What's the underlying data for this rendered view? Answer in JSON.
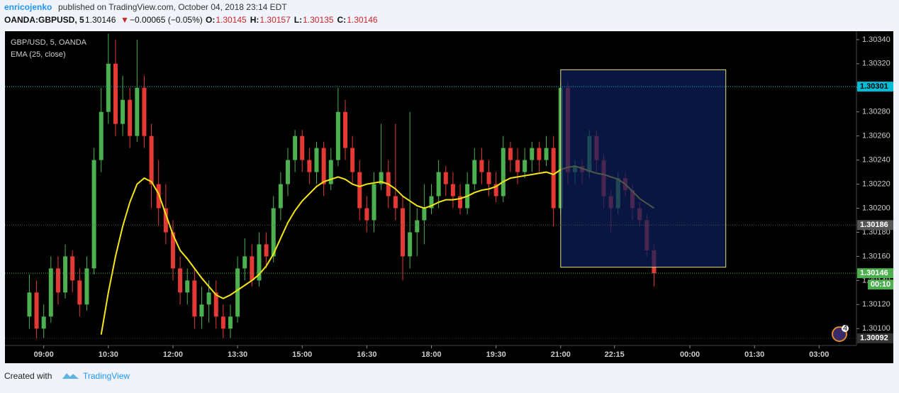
{
  "header": {
    "author": "enricojenko",
    "published": "published on TradingView.com, October 04, 2018 23:14 EDT",
    "symbol": "OANDA:GBPUSD, 5",
    "last": "1.30146",
    "arrow": "▼",
    "change": "−0.00065 (−0.05%)",
    "ohlc": [
      {
        "label": "O:",
        "value": "1.30145"
      },
      {
        "label": "H:",
        "value": "1.30157"
      },
      {
        "label": "L:",
        "value": "1.30135"
      },
      {
        "label": "C:",
        "value": "1.30146"
      }
    ]
  },
  "footer": {
    "created": "Created with",
    "brand": "TradingView"
  },
  "badge": "4",
  "chart_data": {
    "type": "candlestick",
    "x": [
      "08:40",
      "08:50",
      "09:00",
      "09:10",
      "09:20",
      "09:30",
      "09:40",
      "09:50",
      "10:00",
      "10:10",
      "10:20",
      "10:30",
      "10:40",
      "10:50",
      "11:00",
      "11:10",
      "11:20",
      "11:30",
      "11:40",
      "11:50",
      "12:00",
      "12:10",
      "12:20",
      "12:30",
      "12:40",
      "12:50",
      "13:00",
      "13:10",
      "13:20",
      "13:30",
      "13:40",
      "13:50",
      "14:00",
      "14:10",
      "14:20",
      "14:30",
      "14:40",
      "14:50",
      "15:00",
      "15:10",
      "15:20",
      "15:30",
      "15:40",
      "15:50",
      "16:00",
      "16:10",
      "16:20",
      "16:30",
      "16:40",
      "16:50",
      "17:00",
      "17:10",
      "17:20",
      "17:30",
      "17:40",
      "17:50",
      "18:00",
      "18:10",
      "18:20",
      "18:30",
      "18:40",
      "18:50",
      "19:00",
      "19:10",
      "19:20",
      "19:30",
      "19:40",
      "19:50",
      "20:00",
      "20:10",
      "20:20",
      "20:30",
      "20:40",
      "20:50",
      "21:00",
      "21:10",
      "21:20",
      "21:30",
      "21:40",
      "21:50",
      "22:00",
      "22:10",
      "22:20",
      "22:30",
      "22:40",
      "22:50",
      "23:00",
      "23:10"
    ],
    "series": [
      {
        "name": "GBP/USD, 5, OANDA",
        "up_color": "#4caf50",
        "down_color": "#e53935",
        "open": [
          1.3011,
          1.3013,
          1.301,
          1.3011,
          1.3015,
          1.3013,
          1.3016,
          1.3014,
          1.3012,
          1.3015,
          1.3024,
          1.3028,
          1.3032,
          1.3027,
          1.3029,
          1.3026,
          1.303,
          1.3026,
          1.3022,
          1.302,
          1.3018,
          1.3015,
          1.3013,
          1.3014,
          1.3011,
          1.3012,
          1.3013,
          1.3011,
          1.301,
          1.3011,
          1.3015,
          1.3016,
          1.3014,
          1.3017,
          1.3016,
          1.302,
          1.3022,
          1.3024,
          1.3026,
          1.3024,
          1.3023,
          1.3025,
          1.3022,
          1.3024,
          1.3028,
          1.3025,
          1.3023,
          1.302,
          1.3019,
          1.3022,
          1.3023,
          1.3021,
          1.302,
          1.3016,
          1.3018,
          1.3019,
          1.302,
          1.3021,
          1.3023,
          1.3022,
          1.3021,
          1.302,
          1.3022,
          1.3024,
          1.3023,
          1.3022,
          1.3021,
          1.3025,
          1.3024,
          1.3023,
          1.3024,
          1.3025,
          1.3024,
          1.3025,
          1.302,
          1.303,
          1.3023,
          1.30235,
          1.3023,
          1.3026,
          1.3024,
          1.3021,
          1.302,
          1.30225,
          1.30215,
          1.302,
          1.3019,
          1.30165
        ],
        "high": [
          1.30145,
          1.3014,
          1.3012,
          1.3016,
          1.3016,
          1.3017,
          1.30165,
          1.3015,
          1.3016,
          1.3025,
          1.303,
          1.30345,
          1.3034,
          1.3031,
          1.303,
          1.3034,
          1.3031,
          1.3027,
          1.3024,
          1.3022,
          1.3019,
          1.3016,
          1.3015,
          1.3015,
          1.30135,
          1.3014,
          1.3014,
          1.3012,
          1.3012,
          1.3016,
          1.30175,
          1.3017,
          1.3018,
          1.3018,
          1.3021,
          1.3023,
          1.3025,
          1.30265,
          1.30265,
          1.3025,
          1.30255,
          1.30255,
          1.3025,
          1.303,
          1.3029,
          1.3026,
          1.3024,
          1.3021,
          1.3023,
          1.3027,
          1.3024,
          1.3027,
          1.3021,
          1.3028,
          1.302,
          1.3022,
          1.3022,
          1.3024,
          1.30235,
          1.3023,
          1.3022,
          1.3023,
          1.3025,
          1.3025,
          1.3024,
          1.3023,
          1.3026,
          1.30255,
          1.3025,
          1.3025,
          1.30255,
          1.30255,
          1.3026,
          1.3026,
          1.30305,
          1.30305,
          1.3024,
          1.3024,
          1.30265,
          1.30265,
          1.30245,
          1.30215,
          1.3023,
          1.3023,
          1.3022,
          1.30205,
          1.30195,
          1.3017
        ],
        "low": [
          1.301,
          1.30092,
          1.30092,
          1.30105,
          1.3012,
          1.30125,
          1.3013,
          1.3011,
          1.30115,
          1.30145,
          1.3023,
          1.3027,
          1.3026,
          1.3026,
          1.3025,
          1.30255,
          1.3025,
          1.302,
          1.30185,
          1.3017,
          1.3014,
          1.3012,
          1.3012,
          1.301,
          1.301,
          1.30105,
          1.301,
          1.30092,
          1.30092,
          1.30105,
          1.3014,
          1.30135,
          1.30135,
          1.3015,
          1.30155,
          1.3019,
          1.3021,
          1.3023,
          1.3023,
          1.3022,
          1.3022,
          1.3021,
          1.30215,
          1.30235,
          1.3024,
          1.3022,
          1.3019,
          1.3018,
          1.3018,
          1.30215,
          1.302,
          1.3019,
          1.3014,
          1.3015,
          1.3016,
          1.3017,
          1.30195,
          1.302,
          1.3021,
          1.302,
          1.30195,
          1.30195,
          1.30215,
          1.3022,
          1.3021,
          1.30205,
          1.30205,
          1.3023,
          1.3022,
          1.30225,
          1.3023,
          1.3023,
          1.30235,
          1.30185,
          1.30195,
          1.3022,
          1.3022,
          1.3022,
          1.30225,
          1.3023,
          1.302,
          1.3018,
          1.30195,
          1.3021,
          1.3019,
          1.30185,
          1.3016,
          1.30135
        ],
        "close": [
          1.3013,
          1.301,
          1.3011,
          1.3015,
          1.3013,
          1.3016,
          1.3014,
          1.3012,
          1.3015,
          1.3024,
          1.3028,
          1.3032,
          1.3027,
          1.3029,
          1.3026,
          1.303,
          1.3026,
          1.3022,
          1.302,
          1.3018,
          1.3015,
          1.3013,
          1.3014,
          1.3011,
          1.3012,
          1.3013,
          1.3011,
          1.301,
          1.3011,
          1.3015,
          1.3016,
          1.3014,
          1.3017,
          1.3016,
          1.302,
          1.3022,
          1.3024,
          1.3026,
          1.3024,
          1.3023,
          1.3025,
          1.3022,
          1.3024,
          1.3028,
          1.3025,
          1.3023,
          1.302,
          1.3019,
          1.3022,
          1.3023,
          1.3021,
          1.302,
          1.3016,
          1.3018,
          1.3019,
          1.302,
          1.3021,
          1.3023,
          1.3022,
          1.3021,
          1.302,
          1.3022,
          1.3024,
          1.3023,
          1.3022,
          1.3021,
          1.3025,
          1.3024,
          1.3023,
          1.3024,
          1.3025,
          1.3024,
          1.3025,
          1.302,
          1.303,
          1.3023,
          1.30235,
          1.3023,
          1.3026,
          1.3024,
          1.3021,
          1.302,
          1.30225,
          1.30215,
          1.302,
          1.3019,
          1.30165,
          1.30146
        ]
      },
      {
        "name": "EMA (25, close)",
        "color": "#f5e616",
        "values": [
          null,
          null,
          null,
          null,
          null,
          null,
          null,
          null,
          null,
          null,
          1.30095,
          1.3013,
          1.3016,
          1.30185,
          1.30205,
          1.3022,
          1.30225,
          1.30222,
          1.30212,
          1.30195,
          1.30178,
          1.30165,
          1.30158,
          1.3015,
          1.30142,
          1.30135,
          1.30128,
          1.30125,
          1.30128,
          1.30132,
          1.30136,
          1.3014,
          1.30145,
          1.30152,
          1.30162,
          1.30175,
          1.30188,
          1.30198,
          1.30206,
          1.30212,
          1.30218,
          1.30222,
          1.30224,
          1.30226,
          1.30224,
          1.3022,
          1.30218,
          1.3022,
          1.30221,
          1.30222,
          1.3022,
          1.30216,
          1.3021,
          1.30206,
          1.30202,
          1.302,
          1.30202,
          1.30205,
          1.30207,
          1.30207,
          1.30208,
          1.3021,
          1.30213,
          1.30215,
          1.30216,
          1.30218,
          1.30222,
          1.30225,
          1.30226,
          1.30227,
          1.30228,
          1.30229,
          1.3023,
          1.30228,
          1.30232,
          1.30234,
          1.30235,
          1.30233,
          1.30231,
          1.30229,
          1.30228,
          1.30226,
          1.30224,
          1.3022,
          1.30214,
          1.30208,
          1.30204,
          1.302
        ]
      }
    ],
    "xlim": [
      "08:06",
      "03:52"
    ],
    "xticks": [
      "09:00",
      "10:30",
      "12:00",
      "13:30",
      "15:00",
      "16:30",
      "18:00",
      "19:30",
      "21:00",
      "22:15",
      "00:00",
      "01:30",
      "03:00"
    ],
    "ylim": [
      1.30086,
      1.30347
    ],
    "yticks": [
      {
        "value": 1.301,
        "label": "1.30100"
      },
      {
        "value": 1.3012,
        "label": "1.30120"
      },
      {
        "value": 1.3014,
        "label": "1.30140"
      },
      {
        "value": 1.3016,
        "label": "1.30160"
      },
      {
        "value": 1.3018,
        "label": "1.30180"
      },
      {
        "value": 1.302,
        "label": "1.30200"
      },
      {
        "value": 1.3022,
        "label": "1.30220"
      },
      {
        "value": 1.3024,
        "label": "1.30240"
      },
      {
        "value": 1.3026,
        "label": "1.30260"
      },
      {
        "value": 1.3028,
        "label": "1.30280"
      },
      {
        "value": 1.303,
        "label": "1.30300"
      },
      {
        "value": 1.3032,
        "label": "1.30320"
      },
      {
        "value": 1.3034,
        "label": "1.30340"
      }
    ],
    "price_lines": [
      {
        "value": 1.30301,
        "color": "#00bcd4",
        "text_color": "#000000"
      },
      {
        "value": 1.30186,
        "color": "#555555",
        "text_color": "#ffffff"
      },
      {
        "value": 1.30146,
        "color": "#4caf50",
        "text_color": "#ffffff"
      },
      {
        "value": 1.30092,
        "color": "#333333",
        "text_color": "#ffffff"
      }
    ],
    "countdown": "00:10",
    "box": {
      "x": [
        "21:00",
        "00:50"
      ],
      "y": [
        1.30151,
        1.30315
      ],
      "fill": "#0d1f5c",
      "border": "#e8e07a"
    }
  }
}
